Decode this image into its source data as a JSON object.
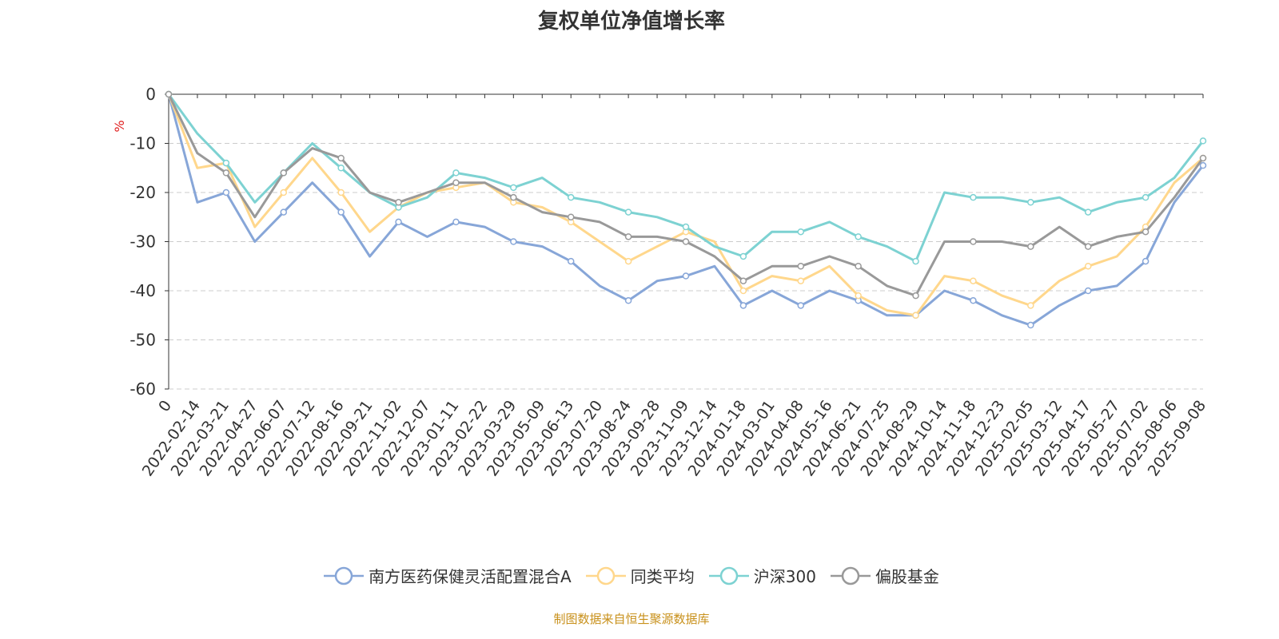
{
  "chart_data": {
    "type": "line",
    "title": "复权单位净值增长率",
    "ylabel": "%",
    "xlabel": "",
    "ylim": [
      -60,
      0
    ],
    "yticks": [
      0,
      -10,
      -20,
      -30,
      -40,
      -50,
      -60
    ],
    "grid": true,
    "legend_position": "bottom",
    "x": [
      "0",
      "2022-02-14",
      "2022-03-21",
      "2022-04-27",
      "2022-06-07",
      "2022-07-12",
      "2022-08-16",
      "2022-09-21",
      "2022-11-02",
      "2022-12-07",
      "2023-01-11",
      "2023-02-22",
      "2023-03-29",
      "2023-05-09",
      "2023-06-13",
      "2023-07-20",
      "2023-08-24",
      "2023-09-28",
      "2023-11-09",
      "2023-12-14",
      "2024-01-18",
      "2024-03-01",
      "2024-04-08",
      "2024-05-16",
      "2024-06-21",
      "2024-07-25",
      "2024-08-29",
      "2024-10-14",
      "2024-11-18",
      "2024-12-23",
      "2025-02-05",
      "2025-03-12",
      "2025-04-17",
      "2025-05-27",
      "2025-07-02",
      "2025-08-06",
      "2025-09-08"
    ],
    "series": [
      {
        "name": "南方医药保健灵活配置混合A",
        "color": "#87a6d8",
        "values": [
          0,
          -22,
          -20,
          -30,
          -24,
          -18,
          -24,
          -33,
          -26,
          -29,
          -26,
          -27,
          -30,
          -31,
          -34,
          -39,
          -42,
          -38,
          -37,
          -35,
          -43,
          -40,
          -43,
          -40,
          -42,
          -45,
          -45,
          -40,
          -42,
          -45,
          -47,
          -43,
          -40,
          -39,
          -34,
          -22,
          -14.5
        ]
      },
      {
        "name": "同类平均",
        "color": "#ffd78c",
        "values": [
          0,
          -15,
          -14,
          -27,
          -20,
          -13,
          -20,
          -28,
          -23,
          -20,
          -19,
          -18,
          -22,
          -23,
          -26,
          -30,
          -34,
          -31,
          -28,
          -30,
          -40,
          -37,
          -38,
          -35,
          -41,
          -44,
          -45,
          -37,
          -38,
          -41,
          -43,
          -38,
          -35,
          -33,
          -27,
          -18,
          -13
        ]
      },
      {
        "name": "沪深300",
        "color": "#7dd2d2",
        "values": [
          0,
          -8,
          -14,
          -22,
          -16,
          -10,
          -15,
          -20,
          -23,
          -21,
          -16,
          -17,
          -19,
          -17,
          -21,
          -22,
          -24,
          -25,
          -27,
          -31,
          -33,
          -28,
          -28,
          -26,
          -29,
          -31,
          -34,
          -20,
          -21,
          -21,
          -22,
          -21,
          -24,
          -22,
          -21,
          -17,
          -9.5
        ]
      },
      {
        "name": "偏股基金",
        "color": "#999999",
        "values": [
          0,
          -12,
          -16,
          -25,
          -16,
          -11,
          -13,
          -20,
          -22,
          -20,
          -18,
          -18,
          -21,
          -24,
          -25,
          -26,
          -29,
          -29,
          -30,
          -33,
          -38,
          -35,
          -35,
          -33,
          -35,
          -39,
          -41,
          -30,
          -30,
          -30,
          -31,
          -27,
          -31,
          -29,
          -28,
          -21,
          -13
        ]
      }
    ]
  },
  "footer": "制图数据来自恒生聚源数据库"
}
